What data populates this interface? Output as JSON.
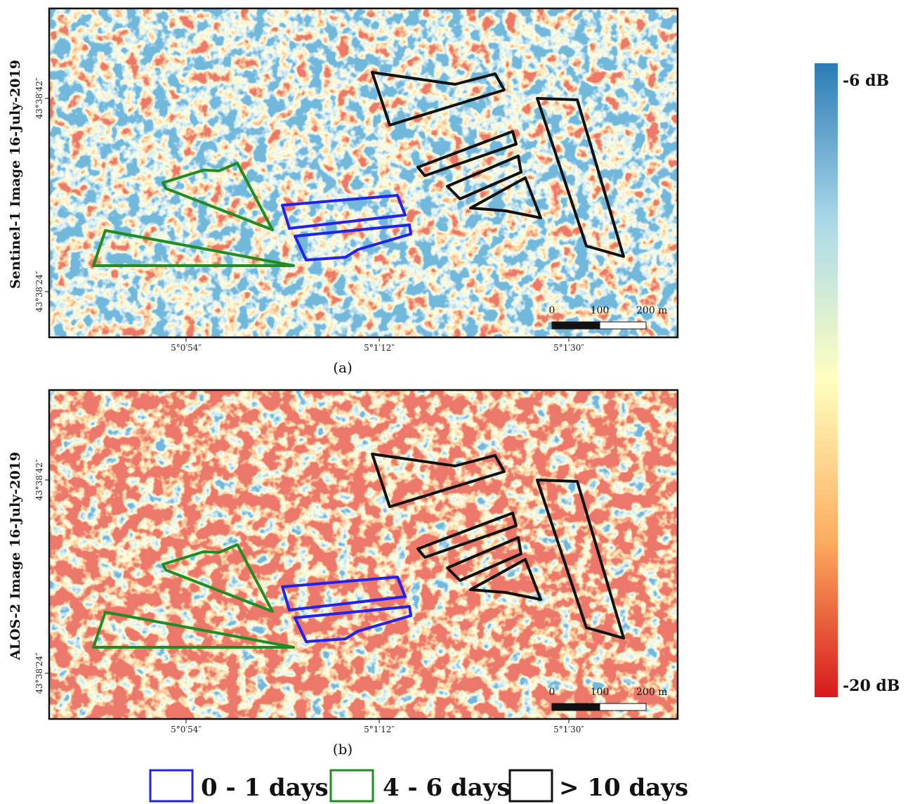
{
  "panels": [
    {
      "caption": "(a)",
      "y_label": "Sentinel-1 Image 16-July-2019",
      "lat_ticks": [
        "43°38′42″",
        "43°38′24″"
      ],
      "lon_ticks": [
        "5°0′54″",
        "5°1′12″",
        "5°1′30″"
      ],
      "scale_bar": [
        "0",
        "100",
        "200 m"
      ]
    },
    {
      "caption": "(b)",
      "y_label": "ALOS-2 Image 16-July-2019",
      "lat_ticks": [
        "43°38′42″",
        "43°38′24″"
      ],
      "lon_ticks": [
        "5°0′54″",
        "5°1′12″",
        "5°1′30″"
      ],
      "scale_bar": [
        "0",
        "100",
        "200 m"
      ]
    }
  ],
  "colorbar": {
    "max_label": "-6 dB",
    "min_label": "-20 dB"
  },
  "legend": [
    "0 - 1 days",
    "4 - 6 days",
    "> 10 days"
  ]
}
